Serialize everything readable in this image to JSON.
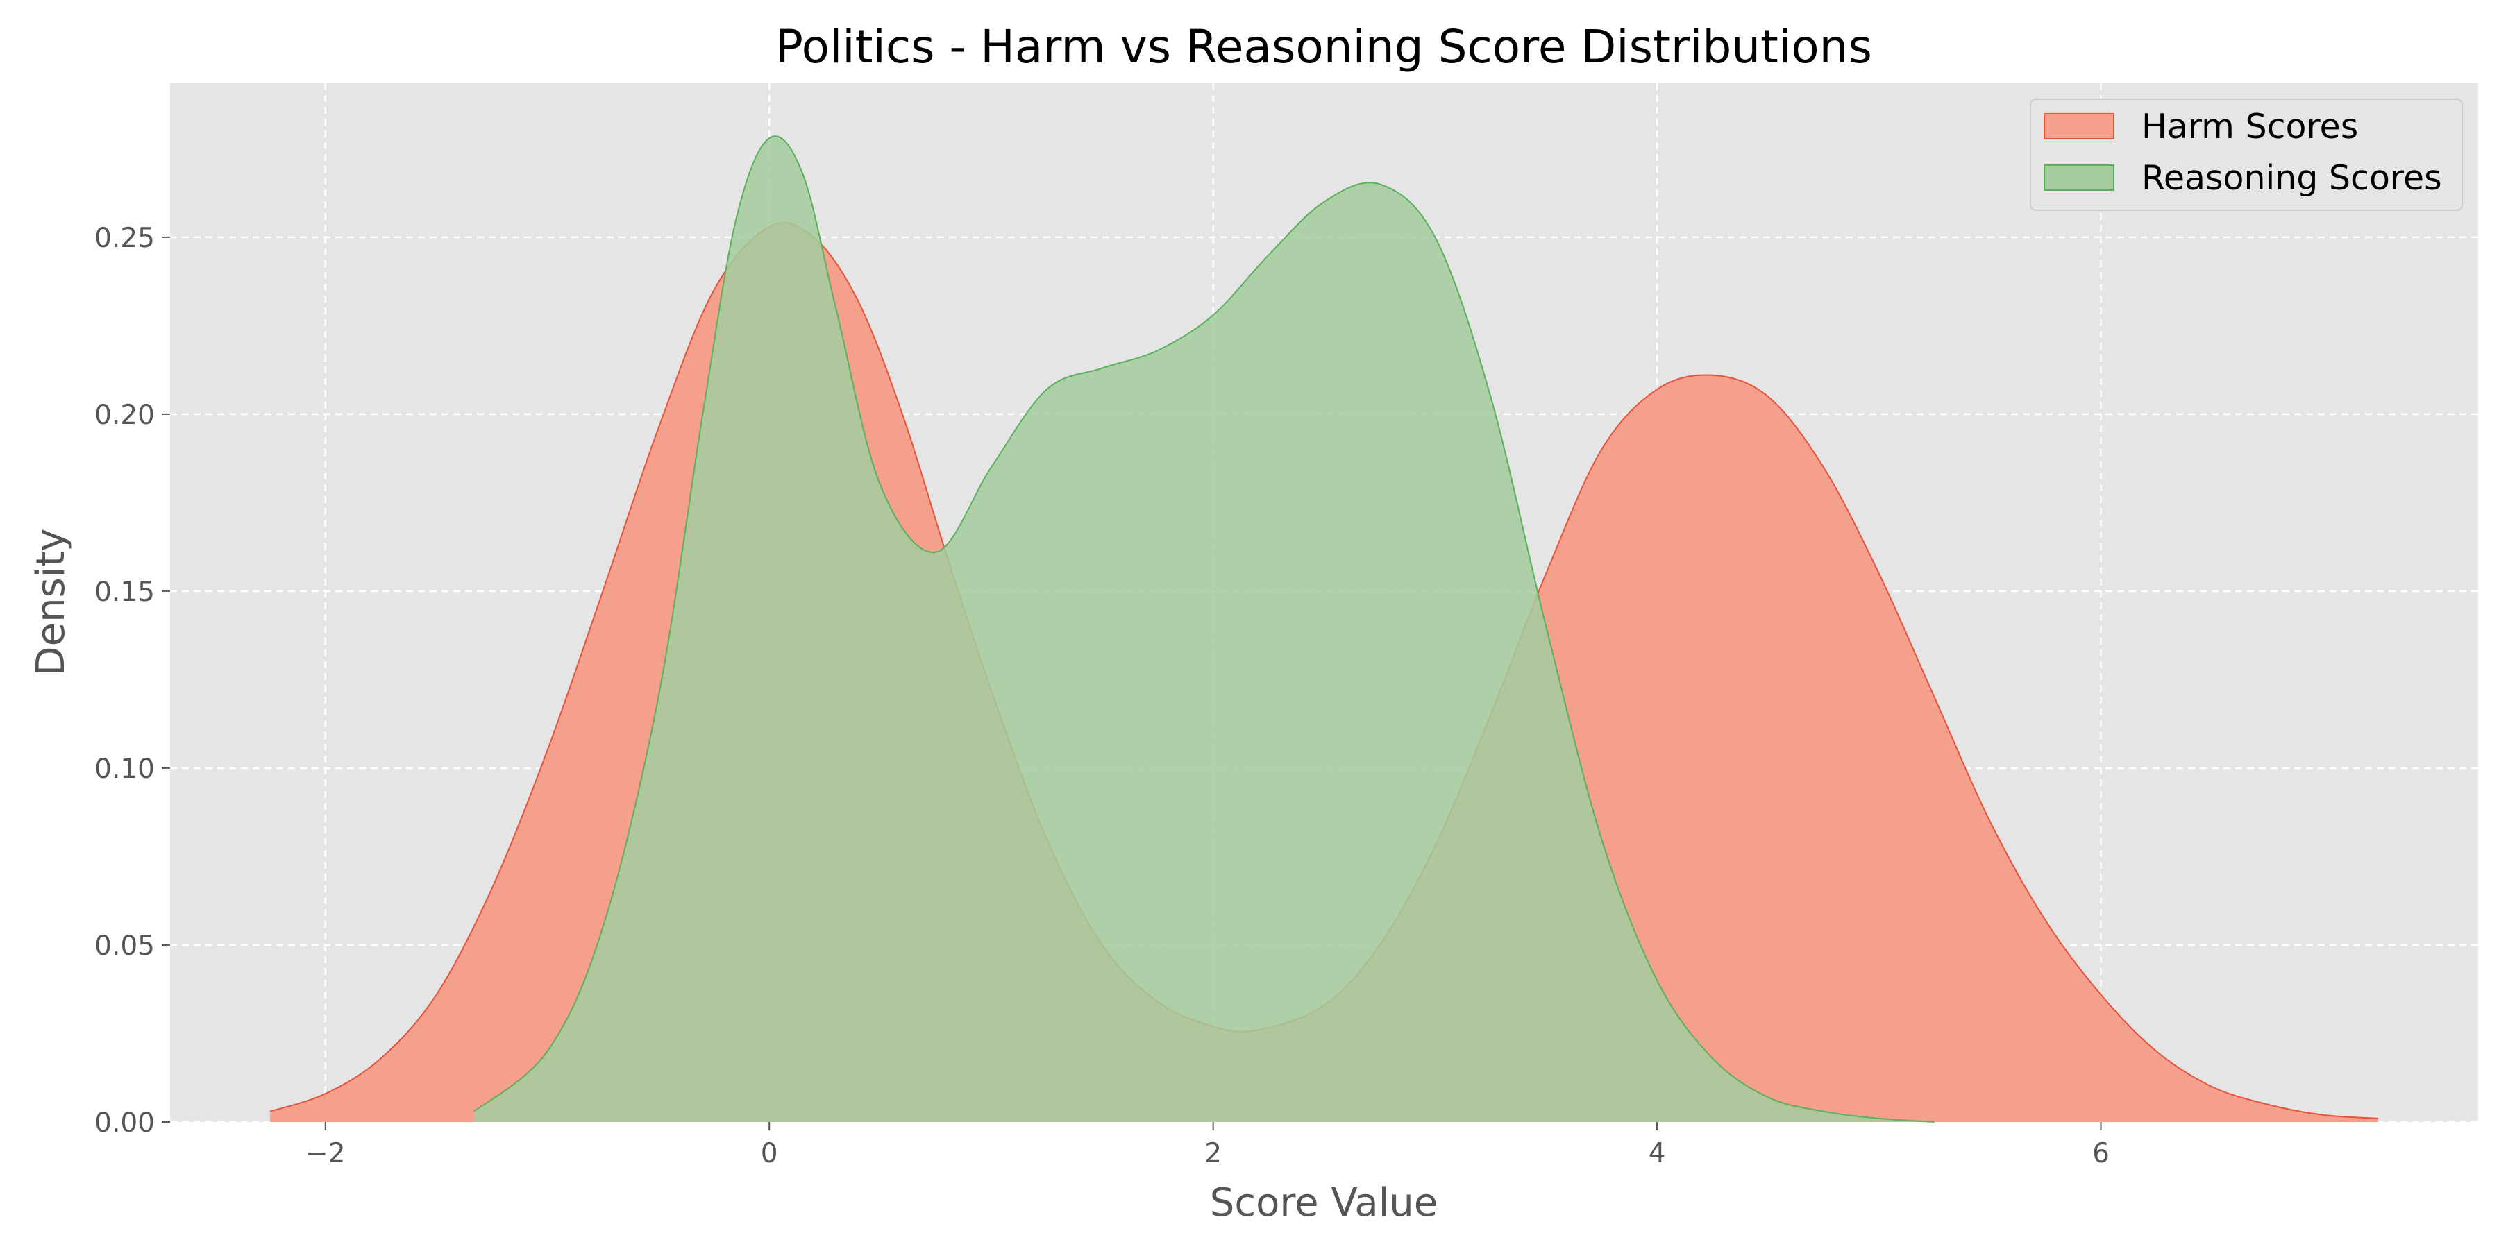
{
  "chart_data": {
    "type": "area",
    "title": "Politics - Harm vs Reasoning Score Distributions",
    "xlabel": "Score Value",
    "ylabel": "Density",
    "xlim": [
      -2.7,
      7.7
    ],
    "ylim": [
      0,
      0.2935
    ],
    "xticks": [
      -2,
      0,
      2,
      4,
      6
    ],
    "xtick_labels": [
      "−2",
      "0",
      "2",
      "4",
      "6"
    ],
    "yticks": [
      0,
      0.05,
      0.1,
      0.15,
      0.2,
      0.25
    ],
    "ytick_labels": [
      "0.00",
      "0.05",
      "0.10",
      "0.15",
      "0.20",
      "0.25"
    ],
    "grid": true,
    "legend_position": "top-right",
    "background": "#e5e5e5",
    "series": [
      {
        "name": "Harm Scores",
        "fill": "#f4a08c",
        "stroke": "#e8523a",
        "x": [
          -2.25,
          -2.0,
          -1.75,
          -1.5,
          -1.25,
          -1.0,
          -0.75,
          -0.5,
          -0.25,
          0.0,
          0.2,
          0.4,
          0.6,
          0.8,
          1.0,
          1.25,
          1.5,
          1.75,
          2.0,
          2.2,
          2.5,
          2.75,
          3.0,
          3.25,
          3.5,
          3.75,
          4.0,
          4.25,
          4.5,
          4.75,
          5.0,
          5.25,
          5.5,
          5.75,
          6.0,
          6.25,
          6.5,
          6.75,
          7.0,
          7.25
        ],
        "y": [
          0.003,
          0.008,
          0.018,
          0.036,
          0.066,
          0.105,
          0.15,
          0.196,
          0.235,
          0.253,
          0.25,
          0.232,
          0.2,
          0.16,
          0.122,
          0.08,
          0.05,
          0.034,
          0.027,
          0.026,
          0.033,
          0.05,
          0.078,
          0.115,
          0.155,
          0.19,
          0.207,
          0.211,
          0.205,
          0.185,
          0.155,
          0.12,
          0.085,
          0.057,
          0.036,
          0.02,
          0.01,
          0.005,
          0.002,
          0.001
        ]
      },
      {
        "name": "Reasoning Scores",
        "fill": "#a3cd9f",
        "stroke": "#5bb05b",
        "x": [
          -1.33,
          -1.0,
          -0.75,
          -0.5,
          -0.3,
          -0.15,
          0.0,
          0.15,
          0.3,
          0.5,
          0.75,
          1.0,
          1.25,
          1.5,
          1.75,
          2.0,
          2.25,
          2.5,
          2.75,
          3.0,
          3.25,
          3.5,
          3.75,
          4.0,
          4.25,
          4.5,
          4.75,
          5.0,
          5.25
        ],
        "y": [
          0.003,
          0.02,
          0.055,
          0.12,
          0.2,
          0.255,
          0.278,
          0.268,
          0.23,
          0.18,
          0.161,
          0.185,
          0.207,
          0.213,
          0.218,
          0.228,
          0.245,
          0.26,
          0.265,
          0.25,
          0.205,
          0.14,
          0.08,
          0.04,
          0.018,
          0.007,
          0.003,
          0.001,
          0.0
        ]
      }
    ]
  }
}
